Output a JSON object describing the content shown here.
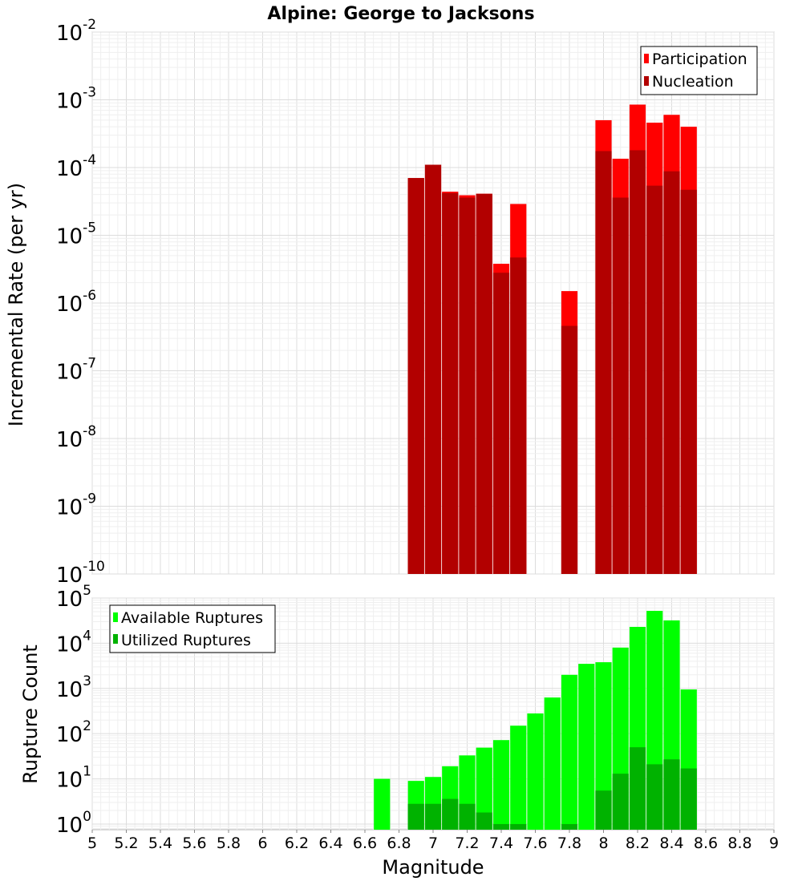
{
  "chart_data": [
    {
      "type": "bar",
      "title": "Alpine: George to Jacksons",
      "xlabel": "",
      "ylabel": "Incremental Rate (per yr)",
      "xlim": [
        5,
        9
      ],
      "ylim": [
        1e-10,
        0.01
      ],
      "yscale": "log",
      "grid": true,
      "legend_position": "top-right",
      "x": [
        6.9,
        7.0,
        7.1,
        7.2,
        7.3,
        7.4,
        7.5,
        7.8,
        8.0,
        8.1,
        8.2,
        8.3,
        8.4,
        8.5
      ],
      "series": [
        {
          "name": "Participation",
          "color": "#ff0000",
          "values": [
            7e-05,
            0.00011,
            4.4e-05,
            3.9e-05,
            4.1e-05,
            3.8e-06,
            2.9e-05,
            1.5e-06,
            0.0005,
            0.000135,
            0.00085,
            0.00046,
            0.0006,
            0.0004
          ]
        },
        {
          "name": "Nucleation",
          "color": "#b20000",
          "values": [
            7e-05,
            0.00011,
            4.2e-05,
            3.6e-05,
            4.1e-05,
            2.8e-06,
            4.7e-06,
            4.6e-07,
            0.000175,
            3.6e-05,
            0.00018,
            5.4e-05,
            8.8e-05,
            4.7e-05
          ]
        }
      ],
      "ytick_labels": [
        {
          "value": 1e-10,
          "base": "10",
          "exp": "-10"
        },
        {
          "value": 1e-09,
          "base": "10",
          "exp": "-9"
        },
        {
          "value": 1e-08,
          "base": "10",
          "exp": "-8"
        },
        {
          "value": 1e-07,
          "base": "10",
          "exp": "-7"
        },
        {
          "value": 1e-06,
          "base": "10",
          "exp": "-6"
        },
        {
          "value": 1e-05,
          "base": "10",
          "exp": "-5"
        },
        {
          "value": 0.0001,
          "base": "10",
          "exp": "-4"
        },
        {
          "value": 0.001,
          "base": "10",
          "exp": "-3"
        },
        {
          "value": 0.01,
          "base": "10",
          "exp": "-2"
        }
      ]
    },
    {
      "type": "bar",
      "title": "",
      "xlabel": "Magnitude",
      "ylabel": "Rupture Count",
      "xlim": [
        5,
        9
      ],
      "ylim": [
        0.75,
        100000
      ],
      "yscale": "log",
      "grid": true,
      "legend_position": "top-left",
      "x": [
        6.7,
        6.9,
        7.0,
        7.1,
        7.2,
        7.3,
        7.4,
        7.5,
        7.6,
        7.7,
        7.8,
        7.9,
        8.0,
        8.1,
        8.2,
        8.3,
        8.4,
        8.5
      ],
      "series": [
        {
          "name": "Available Ruptures",
          "color": "#00ff00",
          "values": [
            10,
            9,
            11,
            19,
            33,
            49,
            72,
            150,
            280,
            630,
            2000,
            3500,
            3800,
            8000,
            23000,
            52000,
            32000,
            950
          ]
        },
        {
          "name": "Utilized Ruptures",
          "color": "#00b200",
          "values": [
            0,
            2.8,
            2.8,
            3.6,
            2.8,
            1.8,
            1.0,
            1.0,
            0,
            0,
            1.0,
            0,
            5.5,
            13,
            50,
            21,
            27,
            17
          ]
        }
      ],
      "xtick_labels": [
        "5",
        "5.2",
        "5.4",
        "5.6",
        "5.8",
        "6",
        "6.2",
        "6.4",
        "6.6",
        "6.8",
        "7",
        "7.2",
        "7.4",
        "7.6",
        "7.8",
        "8",
        "8.2",
        "8.4",
        "8.6",
        "8.8",
        "9"
      ],
      "ytick_labels": [
        {
          "value": 1,
          "base": "10",
          "exp": "0"
        },
        {
          "value": 10,
          "base": "10",
          "exp": "1"
        },
        {
          "value": 100,
          "base": "10",
          "exp": "2"
        },
        {
          "value": 1000,
          "base": "10",
          "exp": "3"
        },
        {
          "value": 10000,
          "base": "10",
          "exp": "4"
        },
        {
          "value": 100000,
          "base": "10",
          "exp": "5"
        }
      ]
    }
  ]
}
